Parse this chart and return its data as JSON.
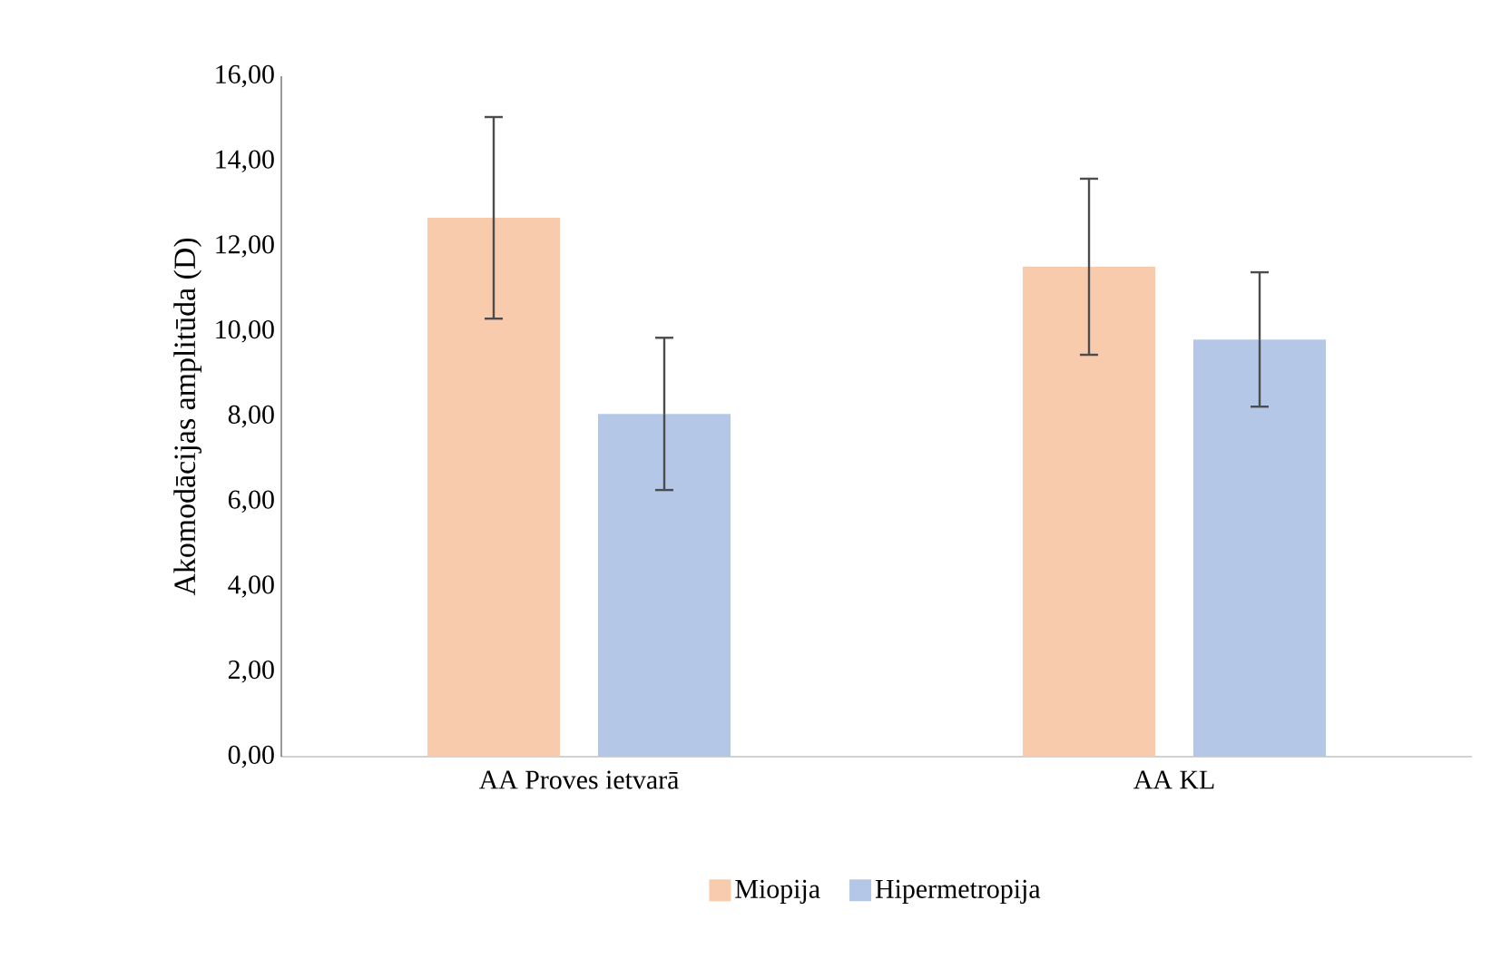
{
  "chart_data": {
    "type": "bar",
    "ylabel": "Akomodācijas amplitūda (D)",
    "categories": [
      "AA Proves ietvarā",
      "AA KL"
    ],
    "series": [
      {
        "name": "Miopija",
        "color": "#f8cbad",
        "values": [
          12.67,
          11.52
        ],
        "errors": [
          2.37,
          2.07
        ]
      },
      {
        "name": "Hipermetropija",
        "color": "#b4c7e7",
        "values": [
          8.06,
          9.81
        ],
        "errors": [
          1.79,
          1.58
        ]
      }
    ],
    "ylim": [
      0,
      16
    ],
    "yticks": [
      {
        "value": 0,
        "label": "0,00"
      },
      {
        "value": 2,
        "label": "2,00"
      },
      {
        "value": 4,
        "label": "4,00"
      },
      {
        "value": 6,
        "label": "6,00"
      },
      {
        "value": 8,
        "label": "8,00"
      },
      {
        "value": 10,
        "label": "10,00"
      },
      {
        "value": 12,
        "label": "12,00"
      },
      {
        "value": 14,
        "label": "14,00"
      },
      {
        "value": 16,
        "label": "16,00"
      }
    ],
    "legend": "bottom"
  }
}
